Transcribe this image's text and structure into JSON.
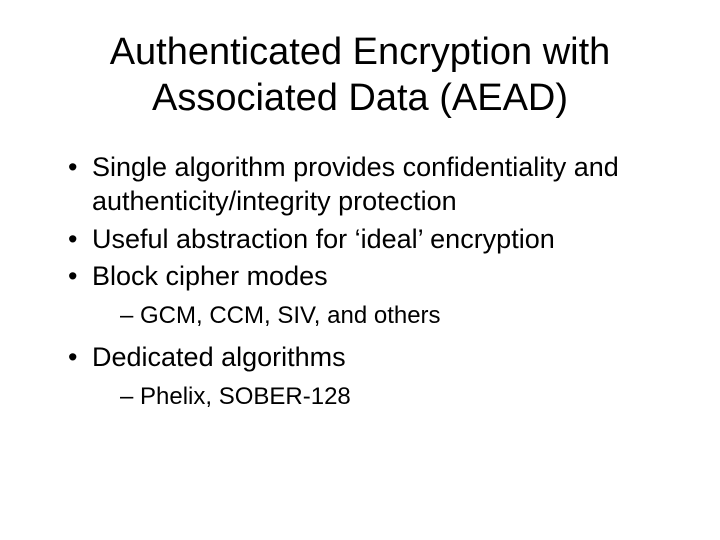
{
  "slide": {
    "title": "Authenticated Encryption with Associated Data (AEAD)",
    "bullets": [
      {
        "text": "Single algorithm provides confidentiality and authenticity/integrity protection",
        "sub": []
      },
      {
        "text": "Useful abstraction for ‘ideal’ encryption",
        "sub": []
      },
      {
        "text": "Block cipher modes",
        "sub": [
          "GCM, CCM, SIV, and others"
        ]
      },
      {
        "text": "Dedicated algorithms",
        "sub": [
          "Phelix, SOBER-128"
        ]
      }
    ],
    "colors": {
      "background": "#ffffff",
      "text": "#000000"
    },
    "fonts": {
      "title_size_pt": 38,
      "body_size_pt": 27,
      "sub_size_pt": 24,
      "family": "Arial"
    }
  }
}
